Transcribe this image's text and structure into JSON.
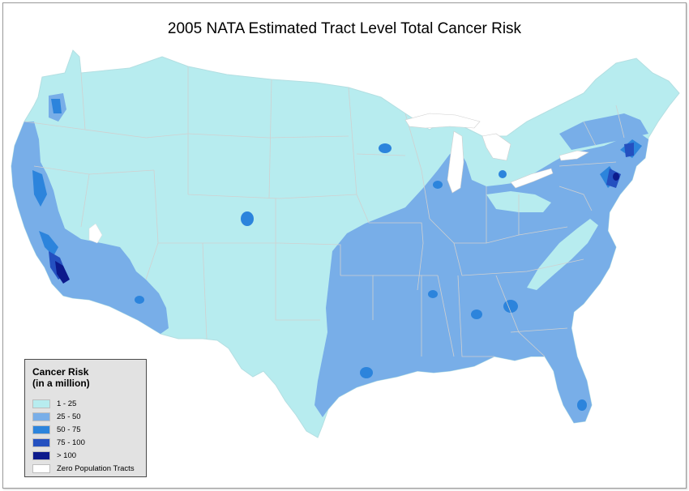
{
  "title": "2005 NATA Estimated Tract Level Total Cancer Risk",
  "legend": {
    "title_line1": "Cancer Risk",
    "title_line2": "(in a million)",
    "items": [
      {
        "label": "1 - 25",
        "color": "#b7ecef"
      },
      {
        "label": "25 - 50",
        "color": "#78aee8"
      },
      {
        "label": "50 - 75",
        "color": "#2c84dc"
      },
      {
        "label": "75 - 100",
        "color": "#2450c0"
      },
      {
        "label": "> 100",
        "color": "#0c1a8c"
      },
      {
        "label": "Zero Population Tracts",
        "color": "#ffffff"
      }
    ]
  },
  "colors": {
    "outline": "#d8d8d8",
    "low": "#b7ecef",
    "mid": "#78aee8",
    "high": "#2c84dc",
    "very_high": "#2450c0",
    "extreme": "#0c1a8c",
    "zero": "#ffffff"
  }
}
